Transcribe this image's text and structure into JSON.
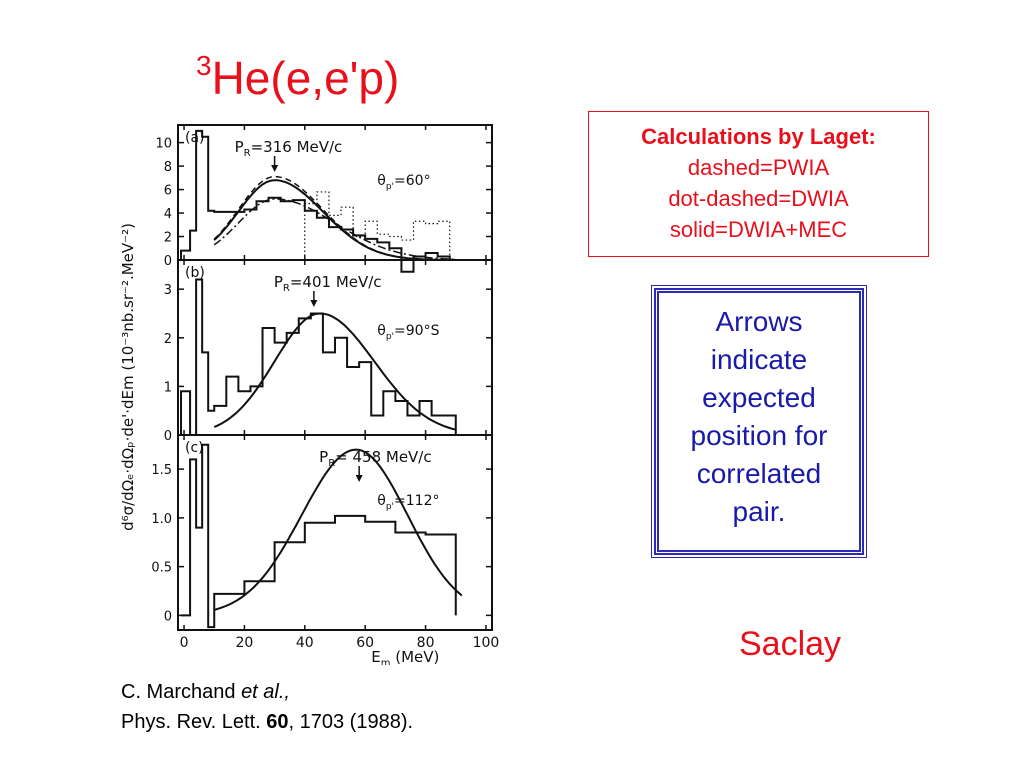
{
  "slide": {
    "title_sup": "3",
    "title_main": "He(e,e'p)",
    "calc_box": {
      "heading": "Calculations by Laget:",
      "lines": [
        "dashed=PWIA",
        "dot-dashed=DWIA",
        "solid=DWIA+MEC"
      ]
    },
    "arrow_box": {
      "lines": [
        "Arrows",
        "indicate",
        "expected",
        "position for",
        "correlated",
        "pair."
      ]
    },
    "location": "Saclay",
    "citation": {
      "authors": "C. Marchand ",
      "etal": "et al.,",
      "journal": "Phys. Rev. Lett. ",
      "volume": "60",
      "pages": ", 1703 (1988)."
    },
    "colors": {
      "red": "#e8101b",
      "blue": "#1a1aa8",
      "ink": "#111111"
    }
  },
  "chart_data": {
    "type": "line",
    "xlabel": "E",
    "xlabel_sub": "m",
    "xlabel_unit": "(MeV)",
    "ylabel": "d⁶σ/dΩₑ·dΩₚ·de'·dEm  (10⁻³nb.sr⁻².MeV⁻²)",
    "xlim": [
      -2,
      102
    ],
    "xticks": [
      0,
      20,
      40,
      60,
      80,
      100
    ],
    "panels": [
      {
        "label": "(a)",
        "annotation": "P_R=316 MeV/c",
        "pr_text": "P",
        "pr_sub": "R",
        "pr_value": "=316 MeV/c",
        "theta_main": "θ",
        "theta_sub": "p'",
        "theta_value": "=60°",
        "arrow_x": 30,
        "ylim": [
          0,
          11.5
        ],
        "yticks": [
          0,
          2,
          4,
          6,
          8,
          10
        ],
        "ytick_labels": [
          "0",
          "2",
          "4",
          "6",
          "8",
          "10"
        ],
        "hist_edges": [
          -1,
          2,
          4,
          6,
          8,
          10,
          20,
          24,
          28,
          32,
          36,
          40,
          44,
          48,
          52,
          56,
          60,
          64,
          68,
          72,
          76,
          80,
          84,
          88
        ],
        "hist_values": [
          0.8,
          2.5,
          11,
          10.5,
          4.2,
          4.1,
          4.3,
          5.0,
          5.3,
          5.0,
          5.1,
          4.2,
          3.6,
          2.8,
          2.6,
          2.1,
          1.8,
          1.5,
          1.0,
          -1.0,
          0.3,
          0.6,
          0.3
        ],
        "dotted_edges": [
          40,
          44,
          48,
          52,
          56,
          60,
          64,
          68,
          72,
          76,
          80,
          84,
          88
        ],
        "dotted_values": [
          4.8,
          5.8,
          3.8,
          4.5,
          2.0,
          3.3,
          2.2,
          2.0,
          1.7,
          3.3,
          3.1,
          3.3
        ],
        "curves": [
          {
            "style": "solid",
            "peak_x": 30,
            "peak_y": 6.8,
            "sigma_left": 12,
            "sigma_right": 16,
            "x_range": [
              10,
              90
            ]
          },
          {
            "style": "dashed",
            "peak_x": 30,
            "peak_y": 7.1,
            "sigma_left": 12,
            "sigma_right": 16,
            "x_range": [
              10,
              90
            ]
          },
          {
            "style": "dotdash",
            "peak_x": 30,
            "peak_y": 5.2,
            "sigma_left": 12,
            "sigma_right": 20,
            "x_range": [
              10,
              90
            ]
          }
        ]
      },
      {
        "label": "(b)",
        "annotation": "P_R=401 MeV/c",
        "pr_text": "P",
        "pr_sub": "R",
        "pr_value": "=401 MeV/c",
        "theta_main": "θ",
        "theta_sub": "p'",
        "theta_value": "=90°S",
        "arrow_x": 43,
        "ylim": [
          0,
          3.6
        ],
        "yticks": [
          0,
          1,
          2,
          3
        ],
        "ytick_labels": [
          "0",
          "1",
          "2",
          "3"
        ],
        "hist_edges": [
          -1,
          2,
          4,
          6,
          8,
          10,
          14,
          18,
          22,
          26,
          30,
          34,
          38,
          42,
          46,
          50,
          54,
          58,
          62,
          66,
          70,
          74,
          78,
          82,
          86,
          90
        ],
        "hist_values": [
          0.9,
          0.0,
          3.2,
          1.7,
          0.5,
          0.6,
          1.2,
          0.9,
          1.0,
          2.2,
          1.9,
          2.1,
          2.4,
          2.5,
          1.7,
          2.0,
          1.4,
          1.5,
          0.4,
          0.9,
          0.7,
          0.4,
          0.7,
          0.4,
          0.4
        ],
        "curves": [
          {
            "style": "solid",
            "peak_x": 45,
            "peak_y": 2.5,
            "sigma_left": 15,
            "sigma_right": 18,
            "x_range": [
              10,
              90
            ]
          }
        ]
      },
      {
        "label": "(c)",
        "annotation": "P_R=458 MeV/c",
        "pr_text": "P",
        "pr_sub": "R",
        "pr_value": "= 458 MeV/c",
        "theta_main": "θ",
        "theta_sub": "p'",
        "theta_value": "=112°",
        "arrow_x": 58,
        "ylim": [
          -0.15,
          1.85
        ],
        "yticks": [
          0,
          0.5,
          1.0,
          1.5
        ],
        "ytick_labels": [
          "0",
          "0.5",
          "1.0",
          "1.5"
        ],
        "hist_edges": [
          -1,
          2,
          4,
          6,
          8,
          10,
          20,
          30,
          40,
          50,
          60,
          70,
          80,
          90
        ],
        "hist_values": [
          0.0,
          1.6,
          0.9,
          1.75,
          -0.12,
          0.22,
          0.35,
          0.75,
          0.95,
          1.02,
          0.96,
          0.85,
          0.83
        ],
        "curves": [
          {
            "style": "solid",
            "peak_x": 57,
            "peak_y": 1.7,
            "sigma_left": 18,
            "sigma_right": 17,
            "x_range": [
              10,
              92
            ]
          }
        ]
      }
    ]
  }
}
